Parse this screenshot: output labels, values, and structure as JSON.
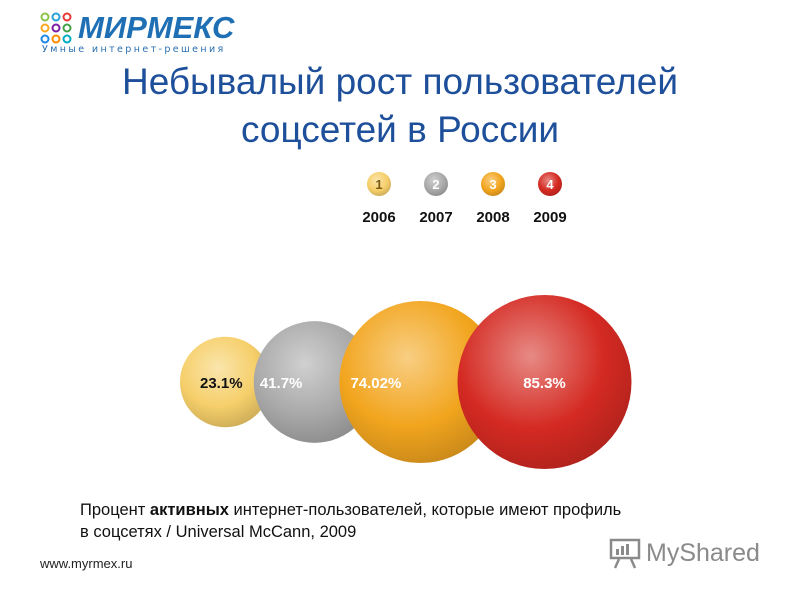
{
  "logo": {
    "name": "МИРМЕКС",
    "tagline": "Умные интернет-решения"
  },
  "title": {
    "line1": "Небывалый рост пользователей",
    "line2": "соцсетей в России"
  },
  "chart_data": {
    "type": "bubble",
    "title": "",
    "legend_position": "top",
    "categories": [
      "2006",
      "2007",
      "2008",
      "2009"
    ],
    "markers": [
      "1",
      "2",
      "3",
      "4"
    ],
    "values": [
      23.1,
      41.7,
      74.02,
      85.3
    ],
    "labels": [
      "23.1%",
      "41.7%",
      "74.02%",
      "85.3%"
    ],
    "unit": "%",
    "colors": [
      "#f6cf6a",
      "#a9a9a9",
      "#f2a51e",
      "#d42a22"
    ]
  },
  "caption": {
    "prefix": "Процент ",
    "bold": "активных",
    "rest": " интернет-пользователей, которые имеют профиль",
    "line2": "в соцсетях / Universal McCann, 2009"
  },
  "footer": {
    "url": "www.myrmex.ru"
  },
  "watermark": {
    "text": "MyShared"
  }
}
